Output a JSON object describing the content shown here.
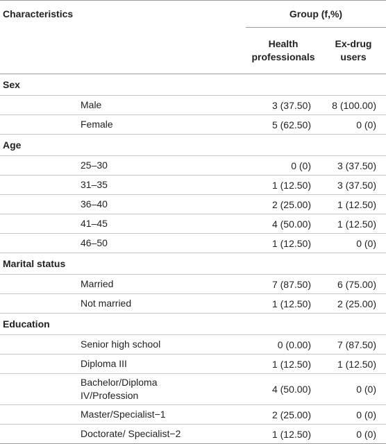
{
  "header": {
    "characteristics": "Characteristics",
    "group": "Group (f,%)",
    "col_hp_line1": "Health",
    "col_hp_line2": "professionals",
    "col_ex_line1": "Ex-drug",
    "col_ex_line2": "users"
  },
  "sections": {
    "sex": {
      "title": "Sex",
      "rows": [
        {
          "label": "Male",
          "hp": "3 (37.50)",
          "ex": "8 (100.00)"
        },
        {
          "label": "Female",
          "hp": "5 (62.50)",
          "ex": "0 (0)"
        }
      ]
    },
    "age": {
      "title": "Age",
      "rows": [
        {
          "label": "25–30",
          "hp": "0 (0)",
          "ex": "3 (37.50)"
        },
        {
          "label": "31–35",
          "hp": "1 (12.50)",
          "ex": "3 (37.50)"
        },
        {
          "label": "36–40",
          "hp": "2 (25.00)",
          "ex": "1 (12.50)"
        },
        {
          "label": "41–45",
          "hp": "4 (50.00)",
          "ex": "1 (12.50)"
        },
        {
          "label": "46–50",
          "hp": "1 (12.50)",
          "ex": "0 (0)"
        }
      ]
    },
    "marital": {
      "title": "Marital status",
      "rows": [
        {
          "label": "Married",
          "hp": "7 (87.50)",
          "ex": "6 (75.00)"
        },
        {
          "label": "Not married",
          "hp": "1 (12.50)",
          "ex": "2 (25.00)"
        }
      ]
    },
    "education": {
      "title": "Education",
      "rows": [
        {
          "label": "Senior high school",
          "hp": "0 (0.00)",
          "ex": "7 (87.50)"
        },
        {
          "label": "Diploma III",
          "hp": "1 (12.50)",
          "ex": "1 (12.50)"
        },
        {
          "label_line1": "Bachelor/Diploma",
          "label_line2": "IV/Profession",
          "hp": "4 (50.00)",
          "ex": "0 (0)"
        },
        {
          "label": "Master/Specialist−1",
          "hp": "2 (25.00)",
          "ex": "0 (0)"
        },
        {
          "label": "Doctorate/ Specialist−2",
          "hp": "1 (12.50)",
          "ex": "0 (0)"
        }
      ]
    }
  }
}
